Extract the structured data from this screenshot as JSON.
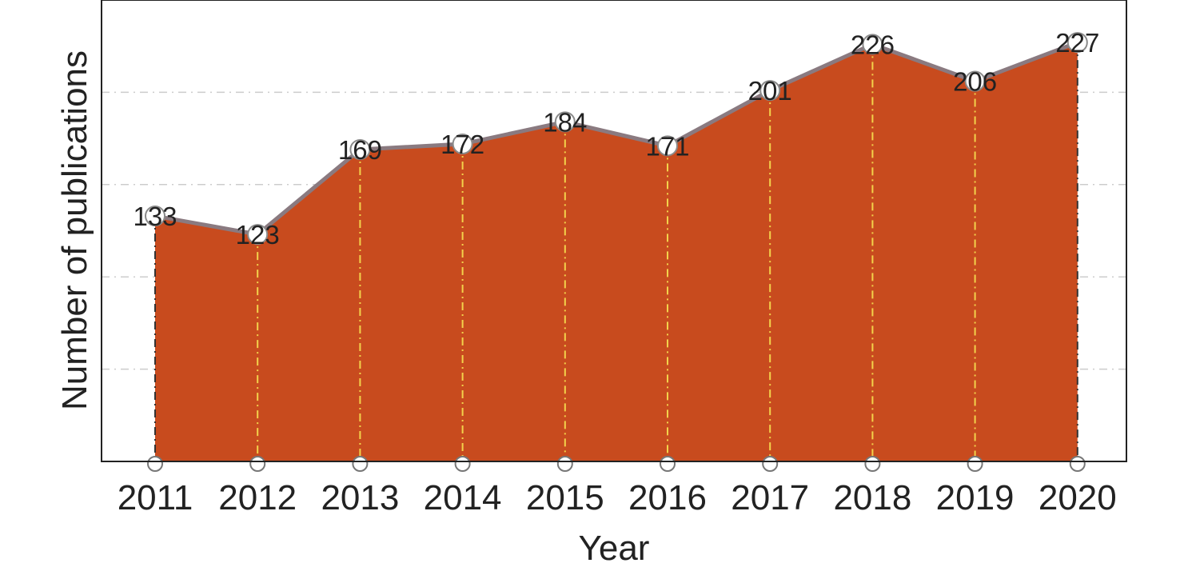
{
  "chart_data": {
    "type": "area",
    "title": "",
    "xlabel": "Year",
    "ylabel": "Number of publications",
    "categories": [
      "2011",
      "2012",
      "2013",
      "2014",
      "2015",
      "2016",
      "2017",
      "2018",
      "2019",
      "2020"
    ],
    "series": [
      {
        "values": [
          133,
          123,
          169,
          172,
          184,
          171,
          201,
          226,
          206,
          227
        ]
      }
    ],
    "ylim": [
      0,
      250
    ],
    "yticks": [
      50,
      100,
      150,
      200
    ],
    "grid": true,
    "colors": {
      "fill": "#C84B1E",
      "line": "#8A7A80",
      "marker": "#FFFFFF",
      "marker_edge": "#8A8A8A",
      "gridline": "#CCCCCC",
      "droplines": "#F2D24B"
    }
  }
}
